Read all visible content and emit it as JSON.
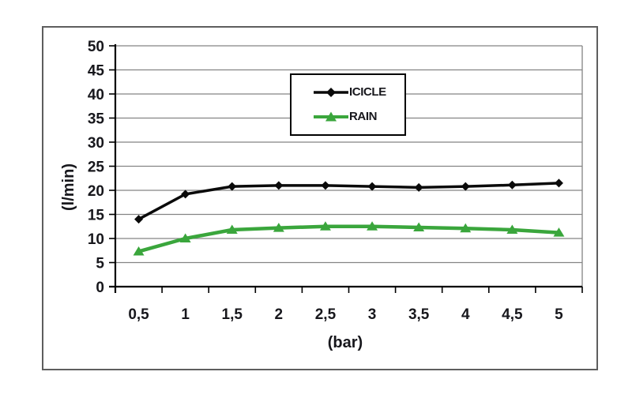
{
  "chart_data": {
    "type": "line",
    "x": [
      0.5,
      1,
      1.5,
      2,
      2.5,
      3,
      3.5,
      4,
      4.5,
      5
    ],
    "x_tick_labels": [
      "0,5",
      "1",
      "1,5",
      "2",
      "2,5",
      "3",
      "3,5",
      "4",
      "4,5",
      "5"
    ],
    "series": [
      {
        "name": "ICICLE",
        "color": "#0a0a0a",
        "marker": "diamond",
        "values": [
          14,
          19.2,
          20.8,
          21.0,
          21.0,
          20.8,
          20.6,
          20.8,
          21.1,
          21.5
        ]
      },
      {
        "name": "RAIN",
        "color": "#3aa63c",
        "marker": "triangle",
        "values": [
          7.3,
          10,
          11.8,
          12.2,
          12.5,
          12.5,
          12.3,
          12.1,
          11.8,
          11.2
        ]
      }
    ],
    "title": "",
    "xlabel": "(bar)",
    "ylabel": "(l/min)",
    "ylim": [
      0,
      50
    ],
    "y_tick_step": 5,
    "grid": true,
    "legend_position": "inside-top-center",
    "colors": {
      "gridline": "#848484",
      "axis": "#000000",
      "tick_text": "#17171c",
      "frame_border": "#5e5e5e"
    }
  }
}
